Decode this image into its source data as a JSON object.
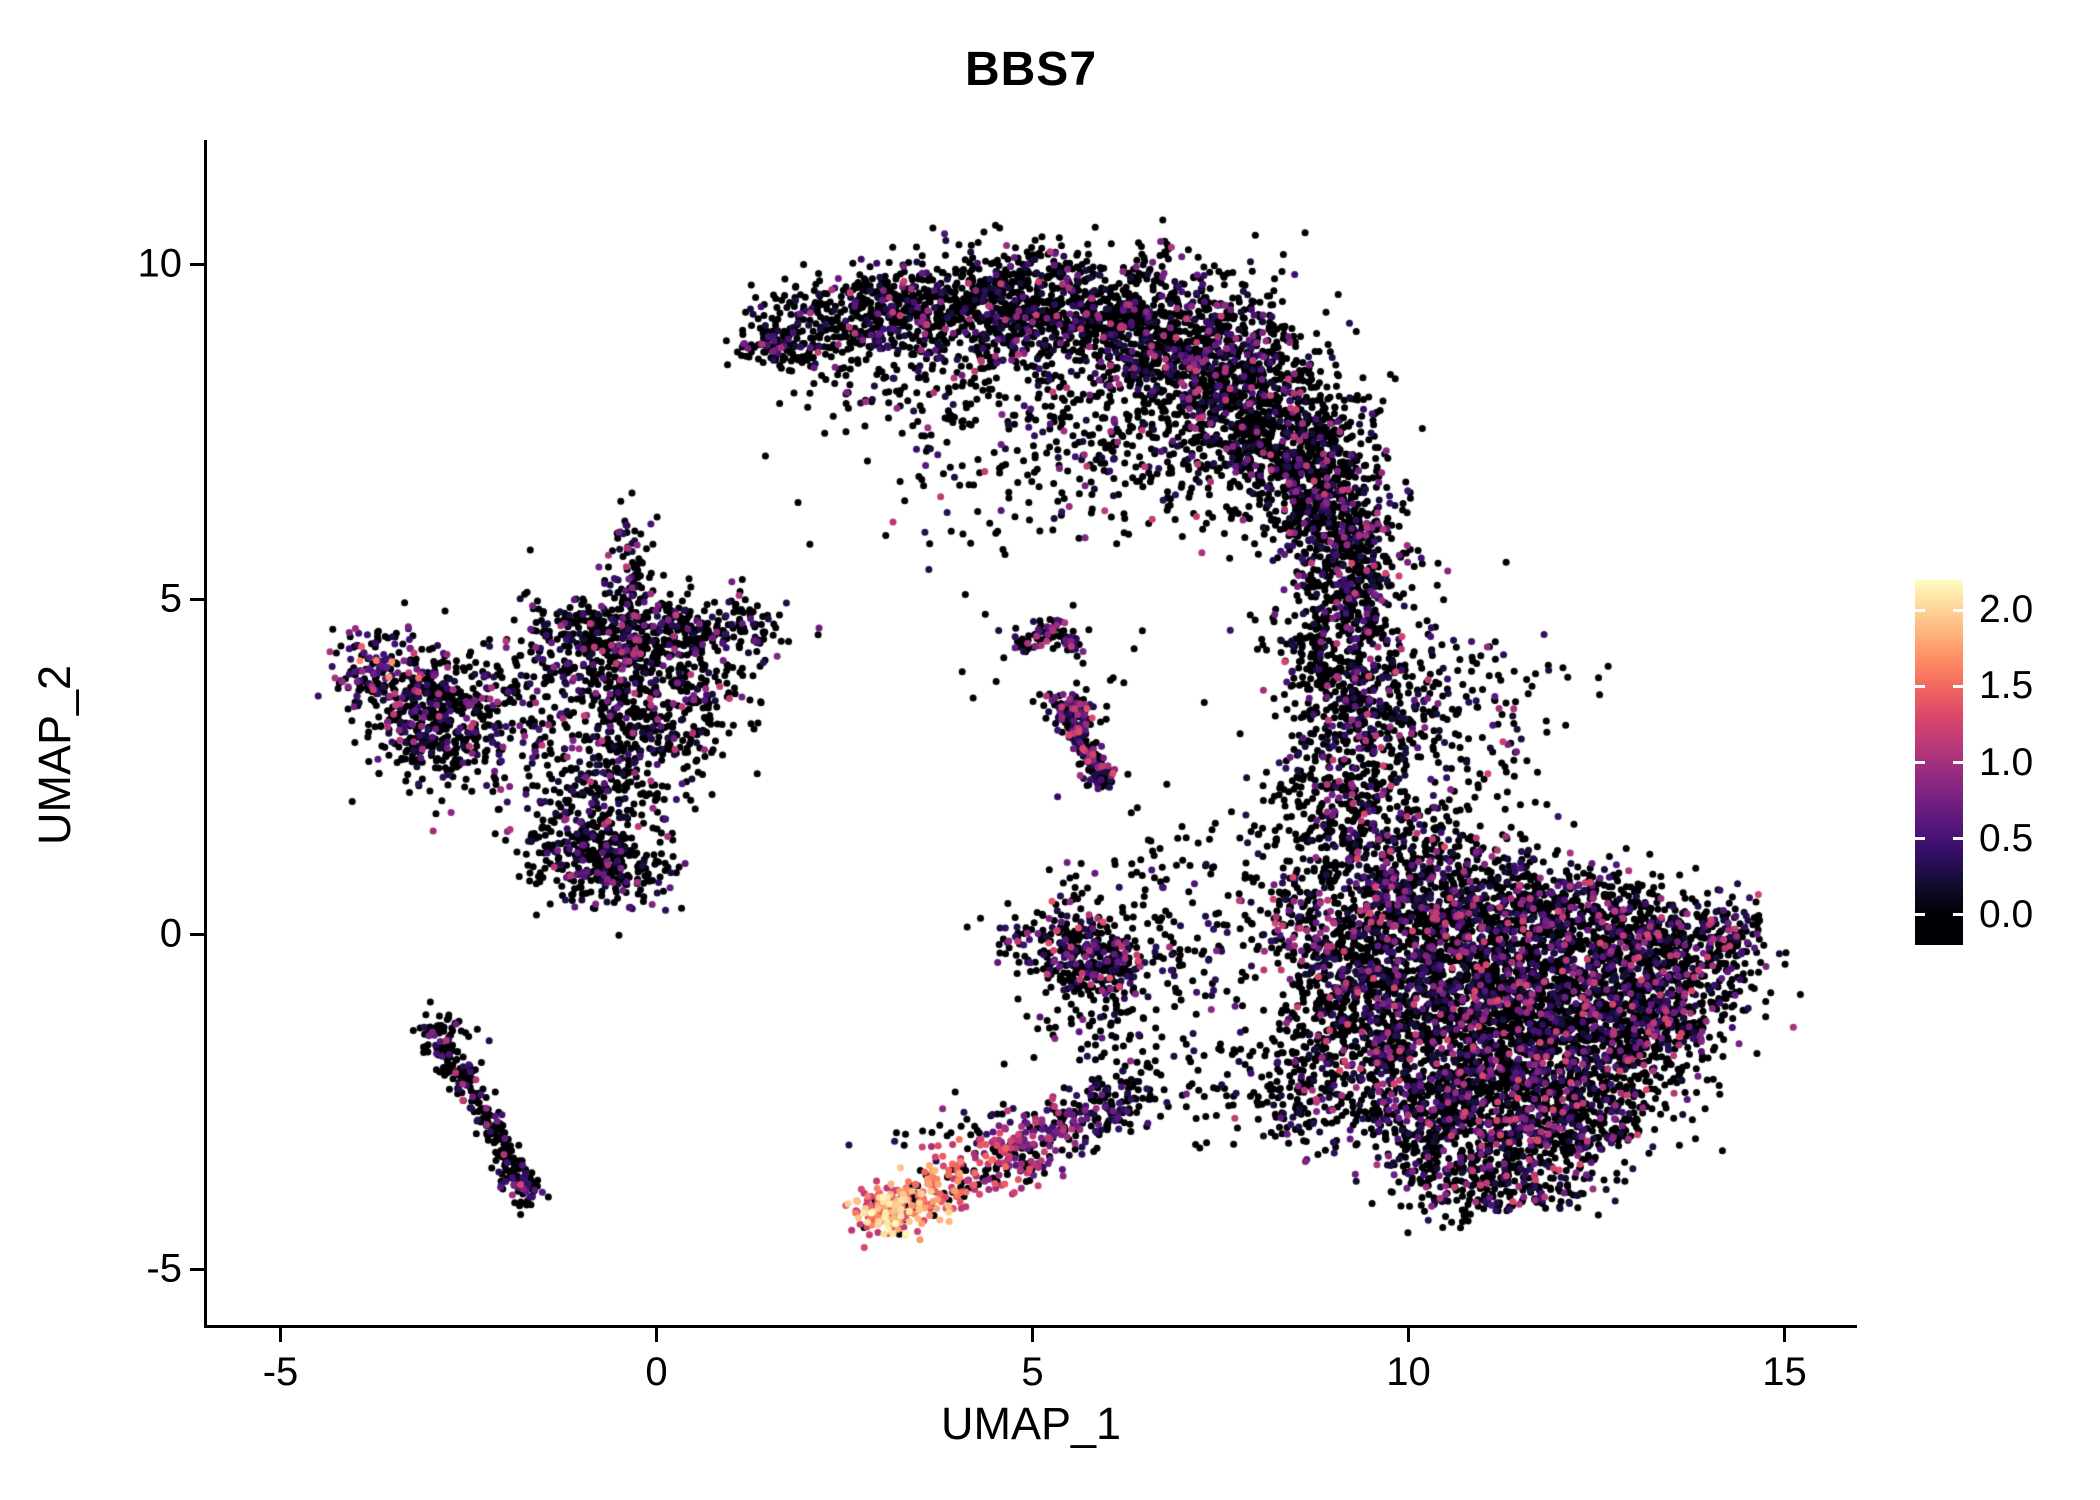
{
  "chart_data": {
    "type": "scatter",
    "title": "BBS7",
    "xlabel": "UMAP_1",
    "ylabel": "UMAP_2",
    "xticks": [
      {
        "v": -5,
        "label": "-5"
      },
      {
        "v": 0,
        "label": "0"
      },
      {
        "v": 5,
        "label": "5"
      },
      {
        "v": 10,
        "label": "10"
      },
      {
        "v": 15,
        "label": "15"
      }
    ],
    "yticks": [
      {
        "v": -5,
        "label": "-5"
      },
      {
        "v": 0,
        "label": "0"
      },
      {
        "v": 5,
        "label": "5"
      },
      {
        "v": 10,
        "label": "10"
      }
    ],
    "xlim": [
      -5.95,
      15.9
    ],
    "ylim": [
      -5.8,
      11.8
    ],
    "grid": false,
    "background": "#ffffff",
    "text_color": "#000000",
    "point_radius": 3.5,
    "seed": 42,
    "colormap": {
      "name": "magma",
      "stops": [
        [
          0.0,
          "#000004"
        ],
        [
          0.1,
          "#140e36"
        ],
        [
          0.2,
          "#3b0f70"
        ],
        [
          0.3,
          "#641a80"
        ],
        [
          0.4,
          "#8c2981"
        ],
        [
          0.5,
          "#b73779"
        ],
        [
          0.6,
          "#de4968"
        ],
        [
          0.7,
          "#f7705c"
        ],
        [
          0.8,
          "#fe9f6d"
        ],
        [
          0.9,
          "#fece91"
        ],
        [
          1.0,
          "#fcfdbf"
        ]
      ]
    },
    "colorbar": {
      "vmin": 0.0,
      "vmax": 2.0,
      "vmax_draw": 2.2,
      "bar_vmin": -0.2,
      "bar_vmax": 2.2,
      "legend_position": "right",
      "ticks": [
        {
          "v": 2.0,
          "label": "2.0"
        },
        {
          "v": 1.5,
          "label": "1.5"
        },
        {
          "v": 1.0,
          "label": "1.0"
        },
        {
          "v": 0.5,
          "label": "0.5"
        },
        {
          "v": 0.0,
          "label": "0.0"
        }
      ]
    },
    "clusters": [
      {
        "name": "top-crescent",
        "expr": {
          "p0": 0.8,
          "lo": 0.2,
          "hi": 1.2
        },
        "blobs": [
          [
            1.5,
            8.85,
            0.25,
            0.2,
            60
          ],
          [
            2.1,
            9.0,
            0.45,
            0.35,
            220
          ],
          [
            3.2,
            9.3,
            0.5,
            0.35,
            300
          ],
          [
            4.3,
            9.4,
            0.55,
            0.4,
            350
          ],
          [
            5.4,
            9.3,
            0.6,
            0.45,
            420
          ],
          [
            6.5,
            9.0,
            0.7,
            0.55,
            600
          ],
          [
            7.5,
            8.4,
            0.65,
            0.6,
            650
          ],
          [
            8.3,
            7.5,
            0.55,
            0.6,
            550
          ],
          [
            8.9,
            6.5,
            0.45,
            0.55,
            400
          ],
          [
            9.1,
            5.7,
            0.4,
            0.4,
            250
          ],
          [
            5.0,
            7.9,
            1.1,
            0.8,
            160
          ],
          [
            6.7,
            7.0,
            0.9,
            0.6,
            200
          ],
          [
            3.6,
            8.3,
            0.8,
            0.6,
            120
          ],
          [
            4.7,
            6.9,
            1.2,
            0.7,
            60
          ]
        ]
      },
      {
        "name": "right-upper-arm",
        "expr": {
          "p0": 0.75,
          "lo": 0.2,
          "hi": 1.3
        },
        "blobs": [
          [
            9.3,
            5.1,
            0.45,
            0.45,
            180
          ],
          [
            9.0,
            4.2,
            0.45,
            0.4,
            200
          ],
          [
            9.4,
            3.4,
            0.5,
            0.45,
            240
          ],
          [
            9.2,
            2.4,
            0.5,
            0.5,
            220
          ],
          [
            9.0,
            1.6,
            0.45,
            0.4,
            150
          ],
          [
            10.4,
            3.4,
            0.7,
            0.7,
            130
          ],
          [
            11.3,
            3.0,
            0.5,
            0.6,
            50
          ]
        ]
      },
      {
        "name": "right-main",
        "expr": {
          "p0": 0.72,
          "lo": 0.2,
          "hi": 1.3
        },
        "blobs": [
          [
            10.3,
            0.6,
            0.7,
            0.5,
            400
          ],
          [
            11.4,
            0.3,
            0.8,
            0.5,
            500
          ],
          [
            12.6,
            0.0,
            0.7,
            0.5,
            450
          ],
          [
            13.6,
            -0.3,
            0.5,
            0.45,
            300
          ],
          [
            14.2,
            -0.1,
            0.3,
            0.3,
            100
          ],
          [
            9.6,
            0.0,
            0.5,
            0.5,
            250
          ],
          [
            10.5,
            -0.7,
            0.7,
            0.5,
            450
          ],
          [
            11.6,
            -1.0,
            0.8,
            0.55,
            550
          ],
          [
            12.7,
            -1.2,
            0.7,
            0.5,
            450
          ],
          [
            13.5,
            -1.3,
            0.45,
            0.4,
            200
          ],
          [
            9.6,
            -1.2,
            0.5,
            0.5,
            250
          ],
          [
            10.6,
            -1.9,
            0.65,
            0.5,
            400
          ],
          [
            11.7,
            -2.2,
            0.7,
            0.5,
            400
          ],
          [
            12.6,
            -2.4,
            0.55,
            0.45,
            250
          ],
          [
            10.0,
            -2.6,
            0.5,
            0.45,
            250
          ],
          [
            11.0,
            -3.0,
            0.6,
            0.45,
            300
          ],
          [
            12.0,
            -3.2,
            0.5,
            0.4,
            180
          ],
          [
            10.6,
            -3.7,
            0.45,
            0.3,
            120
          ],
          [
            11.5,
            -3.8,
            0.4,
            0.25,
            90
          ],
          [
            8.9,
            -0.5,
            0.4,
            0.5,
            150
          ],
          [
            8.8,
            -1.7,
            0.4,
            0.5,
            130
          ],
          [
            8.6,
            -2.6,
            0.35,
            0.4,
            80
          ],
          [
            9.9,
            1.4,
            0.6,
            0.4,
            120
          ],
          [
            8.4,
            0.3,
            0.4,
            0.5,
            100
          ]
        ]
      },
      {
        "name": "left-main",
        "expr": {
          "p0": 0.74,
          "lo": 0.2,
          "hi": 1.2
        },
        "blobs": [
          [
            -3.3,
            3.5,
            0.35,
            0.35,
            150
          ],
          [
            -2.9,
            2.95,
            0.4,
            0.4,
            220
          ],
          [
            -2.4,
            3.6,
            0.45,
            0.4,
            100
          ],
          [
            -1.6,
            3.3,
            0.6,
            0.6,
            110
          ],
          [
            -1.0,
            4.5,
            0.45,
            0.35,
            180
          ],
          [
            -0.4,
            4.35,
            0.4,
            0.35,
            200
          ],
          [
            0.3,
            4.5,
            0.4,
            0.3,
            120
          ],
          [
            1.1,
            4.55,
            0.35,
            0.25,
            90
          ],
          [
            -0.5,
            3.5,
            0.45,
            0.4,
            160
          ],
          [
            0.2,
            3.0,
            0.45,
            0.45,
            140
          ],
          [
            -0.6,
            2.4,
            0.4,
            0.4,
            150
          ],
          [
            -0.9,
            1.3,
            0.4,
            0.45,
            280
          ],
          [
            -0.3,
            0.9,
            0.35,
            0.3,
            110
          ],
          [
            -0.35,
            5.45,
            0.15,
            0.45,
            80
          ],
          [
            0.6,
            3.9,
            0.5,
            0.5,
            90
          ],
          [
            -2.0,
            2.2,
            0.8,
            0.7,
            70
          ]
        ]
      },
      {
        "name": "left-main-hotspot",
        "expr": {
          "p0": 0.45,
          "lo": 0.4,
          "hi": 1.7
        },
        "blobs": [
          [
            -3.7,
            4.0,
            0.3,
            0.3,
            130
          ]
        ]
      },
      {
        "name": "left-lower-streak",
        "expr": {
          "p0": 0.82,
          "lo": 0.3,
          "hi": 1.2
        },
        "streaks": [
          [
            -2.95,
            -1.5,
            -1.7,
            -3.85,
            0.12,
            0.12,
            230
          ]
        ],
        "blobs": [
          [
            -2.8,
            -1.45,
            0.18,
            0.14,
            40
          ]
        ]
      },
      {
        "name": "left-lower-streak-tip",
        "expr": {
          "p0": 0.55,
          "lo": 0.4,
          "hi": 1.5
        },
        "blobs": [
          [
            -1.75,
            -3.8,
            0.12,
            0.15,
            40
          ]
        ]
      },
      {
        "name": "bottom-hot-streak",
        "expr": {
          "type": "gradient",
          "v0": 1.9,
          "v1": 0.15,
          "noise": 0.38,
          "p0_0": 0.05,
          "p0_1": 0.6
        },
        "streaks": [
          [
            2.95,
            -4.25,
            6.4,
            -2.35,
            0.22,
            0.22,
            480
          ]
        ]
      },
      {
        "name": "bottom-hot-tip",
        "expr": {
          "p0": 0.04,
          "lo": 1.1,
          "hi": 2.2
        },
        "blobs": [
          [
            3.05,
            -4.15,
            0.22,
            0.2,
            130
          ]
        ]
      },
      {
        "name": "bottom-streak-halo",
        "expr": {
          "p0": 0.5,
          "lo": 0.3,
          "hi": 1.5
        },
        "blobs": [
          [
            4.5,
            -3.0,
            0.8,
            0.4,
            70
          ]
        ]
      },
      {
        "name": "bottom-bridge",
        "expr": {
          "p0": 0.85,
          "lo": 0.25,
          "hi": 1.0
        },
        "blobs": [
          [
            7.0,
            -2.3,
            0.7,
            0.35,
            60
          ],
          [
            7.9,
            -2.1,
            0.4,
            0.3,
            30
          ]
        ]
      },
      {
        "name": "mid-small-arc",
        "expr": {
          "p0": 0.62,
          "lo": 0.25,
          "hi": 1.3
        },
        "streaks": [
          [
            4.85,
            4.25,
            5.25,
            4.6,
            0.08,
            0.08,
            50
          ],
          [
            5.25,
            4.6,
            5.6,
            4.3,
            0.08,
            0.08,
            40
          ]
        ]
      },
      {
        "name": "mid-diagonal-streak",
        "expr": {
          "p0": 0.6,
          "lo": 0.25,
          "hi": 1.4
        },
        "streaks": [
          [
            5.45,
            3.4,
            5.95,
            2.2,
            0.1,
            0.1,
            170
          ]
        ],
        "blobs": [
          [
            5.5,
            3.35,
            0.2,
            0.15,
            60
          ]
        ]
      },
      {
        "name": "mid-scatter",
        "expr": {
          "p0": 0.85,
          "lo": 0.25,
          "hi": 1.0
        },
        "blobs": [
          [
            5.4,
            4.0,
            0.8,
            0.5,
            25
          ],
          [
            4.8,
            0.1,
            0.25,
            0.25,
            25
          ],
          [
            6.3,
            0.6,
            0.6,
            0.5,
            50
          ],
          [
            7.5,
            0.9,
            0.7,
            0.7,
            60
          ],
          [
            7.0,
            -0.6,
            0.7,
            0.6,
            80
          ],
          [
            5.9,
            -1.3,
            0.4,
            0.45,
            70
          ]
        ]
      },
      {
        "name": "mid-blob",
        "expr": {
          "p0": 0.68,
          "lo": 0.25,
          "hi": 1.4
        },
        "blobs": [
          [
            5.55,
            -0.25,
            0.35,
            0.3,
            230
          ],
          [
            6.05,
            -0.55,
            0.3,
            0.25,
            120
          ]
        ]
      }
    ]
  }
}
